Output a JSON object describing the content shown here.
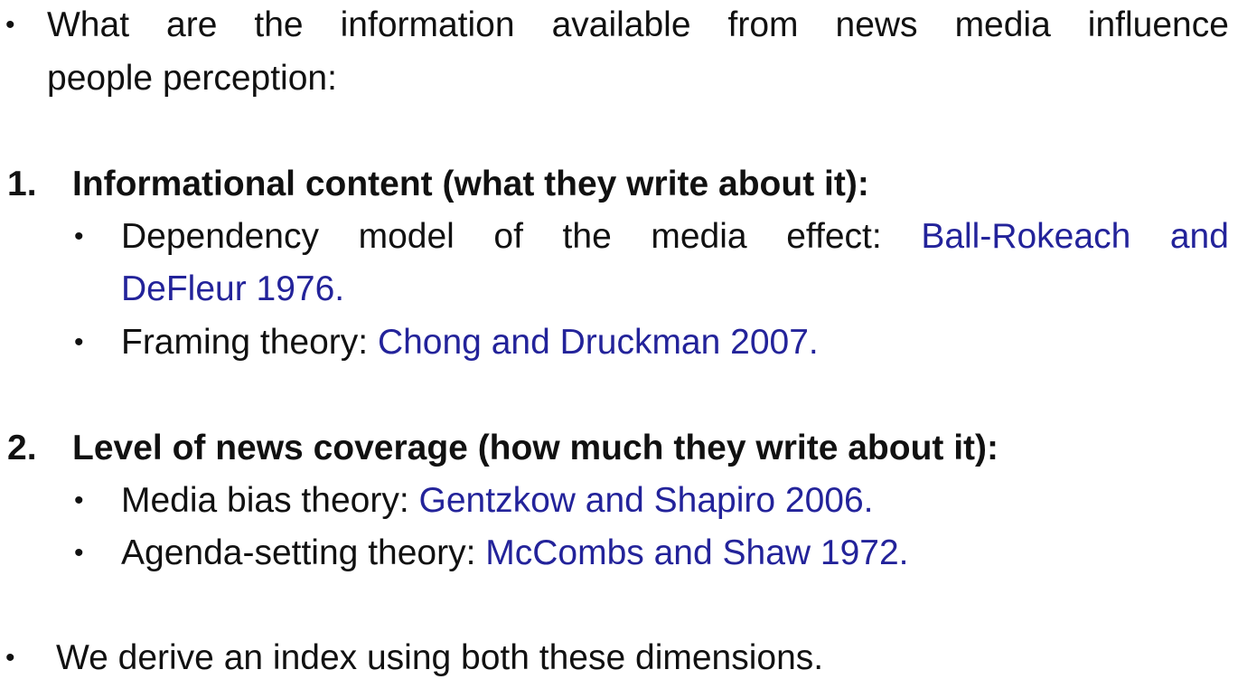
{
  "intro": {
    "bullet": "•",
    "words_line1": [
      "What",
      "are",
      "the",
      "information",
      "available",
      "from",
      "news",
      "media",
      "influence"
    ],
    "line2": "people perception:"
  },
  "section1": {
    "number": "1.",
    "heading": "Informational content (what they write about it):",
    "items": [
      {
        "bullet": "•",
        "words_line1": [
          "Dependency",
          "model",
          "of",
          "the",
          "media",
          "effect:"
        ],
        "cite_words_line1": [
          "Ball-Rokeach",
          "and"
        ],
        "cite_line2": "DeFleur 1976."
      },
      {
        "bullet": "•",
        "text": "Framing theory: ",
        "cite": "Chong and Druckman 2007."
      }
    ]
  },
  "section2": {
    "number": "2.",
    "heading": "Level of news coverage (how much they write about it):",
    "items": [
      {
        "bullet": "•",
        "text": "Media bias theory: ",
        "cite": "Gentzkow and Shapiro 2006."
      },
      {
        "bullet": "•",
        "text": "Agenda-setting theory: ",
        "cite": "McCombs and Shaw 1972."
      }
    ]
  },
  "conclusion": {
    "bullet": "•",
    "text": "We derive an index using both these dimensions."
  },
  "colors": {
    "text": "#111111",
    "citation": "#23239a",
    "background": "#ffffff"
  }
}
